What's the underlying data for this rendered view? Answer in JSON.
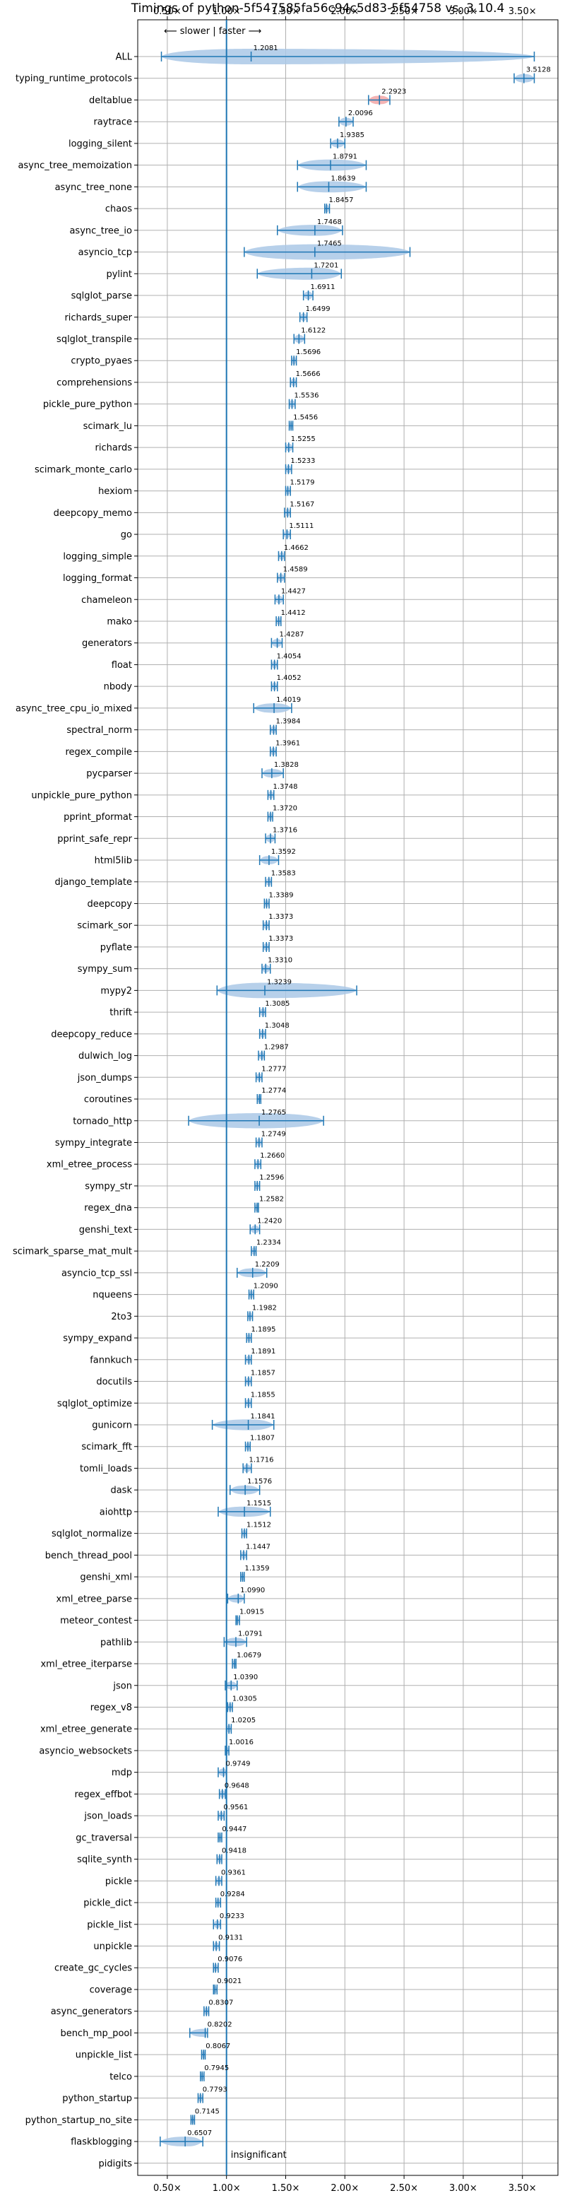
{
  "chart_data": {
    "type": "violin",
    "title": "Timings of python-5f547585fa56c94c5d83-5f54758 vs. 3.10.4",
    "x_ticks": [
      "0.50×",
      "1.00×",
      "1.50×",
      "2.00×",
      "2.50×",
      "3.00×",
      "3.50×"
    ],
    "x_tick_values": [
      0.5,
      1.0,
      1.5,
      2.0,
      2.5,
      3.0,
      3.5
    ],
    "xlim": [
      0.25,
      3.8
    ],
    "grid": true,
    "reference_line": 1.0,
    "direction_annotation": "⟵ slower | faster ⟶",
    "insignificant_label": "insignificant",
    "colors": {
      "violin": "#aac8e6",
      "highlight": "#f2a6a6",
      "line": "#1f77b4",
      "grid": "#b0b0b0"
    },
    "categories": [
      "ALL",
      "typing_runtime_protocols",
      "deltablue",
      "raytrace",
      "logging_silent",
      "async_tree_memoization",
      "async_tree_none",
      "chaos",
      "async_tree_io",
      "asyncio_tcp",
      "pylint",
      "sqlglot_parse",
      "richards_super",
      "sqlglot_transpile",
      "crypto_pyaes",
      "comprehensions",
      "pickle_pure_python",
      "scimark_lu",
      "richards",
      "scimark_monte_carlo",
      "hexiom",
      "deepcopy_memo",
      "go",
      "logging_simple",
      "logging_format",
      "chameleon",
      "mako",
      "generators",
      "float",
      "nbody",
      "async_tree_cpu_io_mixed",
      "spectral_norm",
      "regex_compile",
      "pycparser",
      "unpickle_pure_python",
      "pprint_pformat",
      "pprint_safe_repr",
      "html5lib",
      "django_template",
      "deepcopy",
      "scimark_sor",
      "pyflate",
      "sympy_sum",
      "mypy2",
      "thrift",
      "deepcopy_reduce",
      "dulwich_log",
      "json_dumps",
      "coroutines",
      "tornado_http",
      "sympy_integrate",
      "xml_etree_process",
      "sympy_str",
      "regex_dna",
      "genshi_text",
      "scimark_sparse_mat_mult",
      "asyncio_tcp_ssl",
      "nqueens",
      "2to3",
      "sympy_expand",
      "fannkuch",
      "docutils",
      "sqlglot_optimize",
      "gunicorn",
      "scimark_fft",
      "tomli_loads",
      "dask",
      "aiohttp",
      "sqlglot_normalize",
      "bench_thread_pool",
      "genshi_xml",
      "xml_etree_parse",
      "meteor_contest",
      "pathlib",
      "xml_etree_iterparse",
      "json",
      "regex_v8",
      "xml_etree_generate",
      "asyncio_websockets",
      "mdp",
      "regex_effbot",
      "json_loads",
      "gc_traversal",
      "sqlite_synth",
      "pickle",
      "pickle_dict",
      "pickle_list",
      "unpickle",
      "create_gc_cycles",
      "coverage",
      "async_generators",
      "bench_mp_pool",
      "unpickle_list",
      "telco",
      "python_startup",
      "python_startup_no_site",
      "flaskblogging",
      "pidigits"
    ],
    "values": [
      1.2081,
      3.5128,
      2.2923,
      2.0096,
      1.9385,
      1.8791,
      1.8639,
      1.8457,
      1.7468,
      1.7465,
      1.7201,
      1.6911,
      1.6499,
      1.6122,
      1.5696,
      1.5666,
      1.5536,
      1.5456,
      1.5255,
      1.5233,
      1.5179,
      1.5167,
      1.5111,
      1.4662,
      1.4589,
      1.4427,
      1.4412,
      1.4287,
      1.4054,
      1.4052,
      1.4019,
      1.3984,
      1.3961,
      1.3828,
      1.3748,
      1.372,
      1.3716,
      1.3592,
      1.3583,
      1.3389,
      1.3373,
      1.3373,
      1.331,
      1.3239,
      1.3085,
      1.3048,
      1.2987,
      1.2777,
      1.2774,
      1.2765,
      1.2749,
      1.266,
      1.2596,
      1.2582,
      1.242,
      1.2334,
      1.2209,
      1.209,
      1.1982,
      1.1895,
      1.1891,
      1.1857,
      1.1855,
      1.1841,
      1.1807,
      1.1716,
      1.1576,
      1.1515,
      1.1512,
      1.1447,
      1.1359,
      1.099,
      1.0915,
      1.0791,
      1.0679,
      1.039,
      1.0305,
      1.0205,
      1.0016,
      0.9749,
      0.9648,
      0.9561,
      0.9447,
      0.9418,
      0.9361,
      0.9284,
      0.9233,
      0.9131,
      0.9076,
      0.9021,
      0.8307,
      0.8202,
      0.8067,
      0.7945,
      0.7793,
      0.7145,
      0.6507,
      null
    ],
    "value_labels": [
      "1.2081",
      "3.5128",
      "2.2923",
      "2.0096",
      "1.9385",
      "1.8791",
      "1.8639",
      "1.8457",
      "1.7468",
      "1.7465",
      "1.7201",
      "1.6911",
      "1.6499",
      "1.6122",
      "1.5696",
      "1.5666",
      "1.5536",
      "1.5456",
      "1.5255",
      "1.5233",
      "1.5179",
      "1.5167",
      "1.5111",
      "1.4662",
      "1.4589",
      "1.4427",
      "1.4412",
      "1.4287",
      "1.4054",
      "1.4052",
      "1.4019",
      "1.3984",
      "1.3961",
      "1.3828",
      "1.3748",
      "1.3720",
      "1.3716",
      "1.3592",
      "1.3583",
      "1.3389",
      "1.3373",
      "1.3373",
      "1.3310",
      "1.3239",
      "1.3085",
      "1.3048",
      "1.2987",
      "1.2777",
      "1.2774",
      "1.2765",
      "1.2749",
      "1.2660",
      "1.2596",
      "1.2582",
      "1.2420",
      "1.2334",
      "1.2209",
      "1.2090",
      "1.1982",
      "1.1895",
      "1.1891",
      "1.1857",
      "1.1855",
      "1.1841",
      "1.1807",
      "1.1716",
      "1.1576",
      "1.1515",
      "1.1512",
      "1.1447",
      "1.1359",
      "1.0990",
      "1.0915",
      "1.0791",
      "1.0679",
      "1.0390",
      "1.0305",
      "1.0205",
      "1.0016",
      "0.9749",
      "0.9648",
      "0.9561",
      "0.9447",
      "0.9418",
      "0.9361",
      "0.9284",
      "0.9233",
      "0.9131",
      "0.9076",
      "0.9021",
      "0.8307",
      "0.8202",
      "0.8067",
      "0.7945",
      "0.7793",
      "0.7145",
      "0.6507",
      ""
    ],
    "ranges": [
      [
        0.45,
        3.6
      ],
      [
        3.43,
        3.6
      ],
      [
        2.2,
        2.38
      ],
      [
        1.95,
        2.07
      ],
      [
        1.88,
        2.0
      ],
      [
        1.6,
        2.18
      ],
      [
        1.6,
        2.18
      ],
      [
        1.83,
        1.87
      ],
      [
        1.43,
        1.98
      ],
      [
        1.15,
        2.55
      ],
      [
        1.26,
        1.97
      ],
      [
        1.65,
        1.73
      ],
      [
        1.62,
        1.68
      ],
      [
        1.57,
        1.66
      ],
      [
        1.55,
        1.59
      ],
      [
        1.54,
        1.59
      ],
      [
        1.53,
        1.58
      ],
      [
        1.53,
        1.56
      ],
      [
        1.5,
        1.56
      ],
      [
        1.5,
        1.55
      ],
      [
        1.5,
        1.54
      ],
      [
        1.49,
        1.54
      ],
      [
        1.48,
        1.54
      ],
      [
        1.44,
        1.49
      ],
      [
        1.43,
        1.49
      ],
      [
        1.41,
        1.48
      ],
      [
        1.42,
        1.46
      ],
      [
        1.38,
        1.47
      ],
      [
        1.38,
        1.43
      ],
      [
        1.38,
        1.43
      ],
      [
        1.23,
        1.55
      ],
      [
        1.37,
        1.42
      ],
      [
        1.37,
        1.42
      ],
      [
        1.3,
        1.48
      ],
      [
        1.35,
        1.4
      ],
      [
        1.35,
        1.39
      ],
      [
        1.33,
        1.41
      ],
      [
        1.28,
        1.44
      ],
      [
        1.33,
        1.38
      ],
      [
        1.32,
        1.36
      ],
      [
        1.31,
        1.36
      ],
      [
        1.31,
        1.36
      ],
      [
        1.3,
        1.37
      ],
      [
        0.92,
        2.1
      ],
      [
        1.28,
        1.33
      ],
      [
        1.28,
        1.33
      ],
      [
        1.27,
        1.32
      ],
      [
        1.25,
        1.3
      ],
      [
        1.26,
        1.29
      ],
      [
        0.68,
        1.82
      ],
      [
        1.25,
        1.3
      ],
      [
        1.24,
        1.29
      ],
      [
        1.24,
        1.28
      ],
      [
        1.24,
        1.27
      ],
      [
        1.2,
        1.28
      ],
      [
        1.21,
        1.25
      ],
      [
        1.09,
        1.34
      ],
      [
        1.19,
        1.23
      ],
      [
        1.18,
        1.22
      ],
      [
        1.17,
        1.21
      ],
      [
        1.16,
        1.21
      ],
      [
        1.16,
        1.21
      ],
      [
        1.16,
        1.21
      ],
      [
        0.88,
        1.4
      ],
      [
        1.16,
        1.2
      ],
      [
        1.14,
        1.21
      ],
      [
        1.03,
        1.28
      ],
      [
        0.93,
        1.37
      ],
      [
        1.13,
        1.17
      ],
      [
        1.12,
        1.17
      ],
      [
        1.12,
        1.15
      ],
      [
        1.01,
        1.15
      ],
      [
        1.08,
        1.11
      ],
      [
        0.98,
        1.17
      ],
      [
        1.05,
        1.08
      ],
      [
        0.99,
        1.09
      ],
      [
        1.01,
        1.05
      ],
      [
        1.0,
        1.04
      ],
      [
        0.99,
        1.02
      ],
      [
        0.93,
        1.0
      ],
      [
        0.94,
        0.99
      ],
      [
        0.93,
        0.98
      ],
      [
        0.93,
        0.96
      ],
      [
        0.92,
        0.96
      ],
      [
        0.91,
        0.96
      ],
      [
        0.91,
        0.95
      ],
      [
        0.89,
        0.95
      ],
      [
        0.89,
        0.94
      ],
      [
        0.89,
        0.93
      ],
      [
        0.89,
        0.92
      ],
      [
        0.81,
        0.85
      ],
      [
        0.69,
        0.84
      ],
      [
        0.79,
        0.82
      ],
      [
        0.78,
        0.81
      ],
      [
        0.76,
        0.8
      ],
      [
        0.7,
        0.73
      ],
      [
        0.44,
        0.8
      ],
      [
        null,
        null
      ]
    ],
    "highlight_index": 2
  }
}
